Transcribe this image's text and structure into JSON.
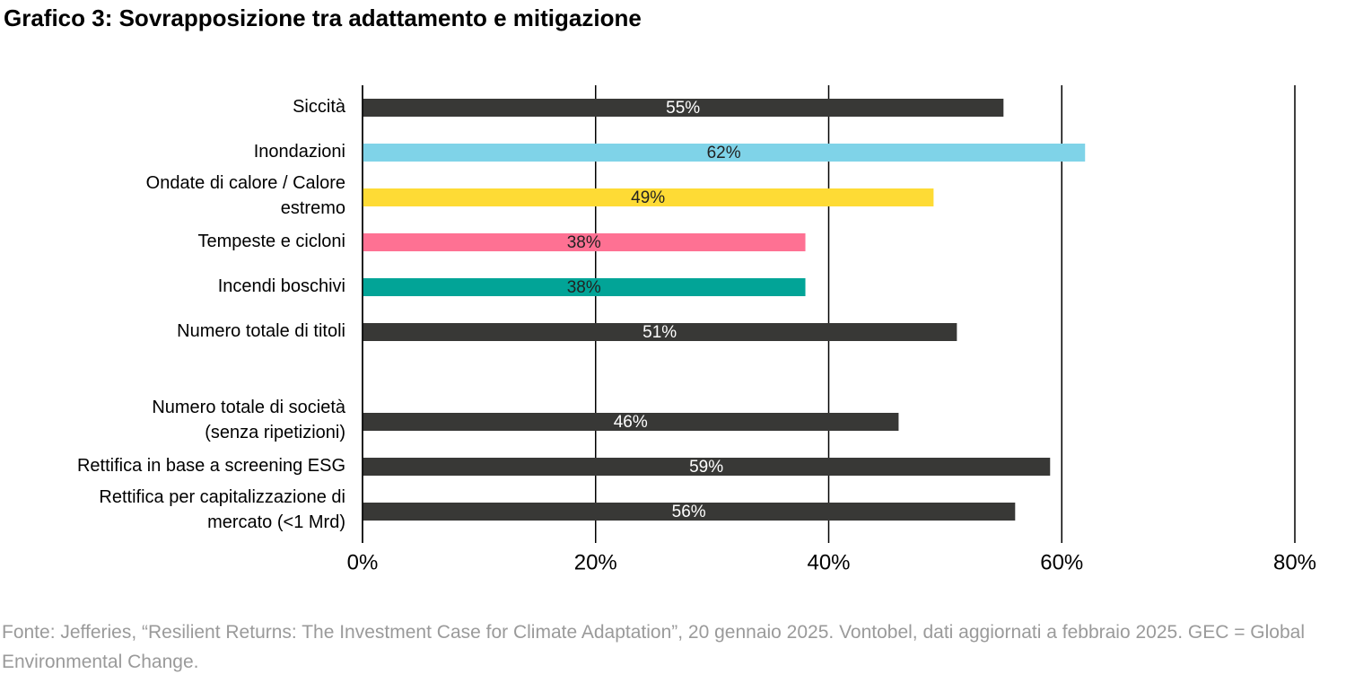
{
  "chart_data": {
    "type": "hbar",
    "title": "Grafico 3: Sovrapposizione tra adattamento e mitigazione",
    "categories": [
      "Siccità",
      "Inondazioni",
      "Ondate di calore / Calore\nestremo",
      "Tempeste e cicloni",
      "Incendi boschivi",
      "Numero totale di titoli",
      null,
      "Numero totale di società\n(senza ripetizioni)",
      "Rettifica in base a screening ESG",
      "Rettifica per capitalizzazione di\nmercato (<1 Mrd)"
    ],
    "values": [
      55,
      62,
      49,
      38,
      38,
      51,
      null,
      46,
      59,
      56
    ],
    "value_labels": [
      "55%",
      "62%",
      "49%",
      "38%",
      "38%",
      "51%",
      null,
      "46%",
      "59%",
      "56%"
    ],
    "colors": [
      "#383836",
      "#7fd3e8",
      "#fedb35",
      "#fe7193",
      "#02a497",
      "#383836",
      null,
      "#383836",
      "#383836",
      "#383836"
    ],
    "xlim": [
      0,
      80
    ],
    "xticks": [
      {
        "value": 0,
        "label": "0%"
      },
      {
        "value": 20,
        "label": "20%"
      },
      {
        "value": 40,
        "label": "40%"
      },
      {
        "value": 60,
        "label": "60%"
      },
      {
        "value": 80,
        "label": "80%"
      }
    ],
    "grid": true,
    "source": "Fonte: Jefferies, “Resilient Returns: The Investment Case for Climate Adaptation”, 20 gennaio 2025. Vontobel, dati aggiornati a febbraio 2025. GEC = Global Environmental Change."
  }
}
